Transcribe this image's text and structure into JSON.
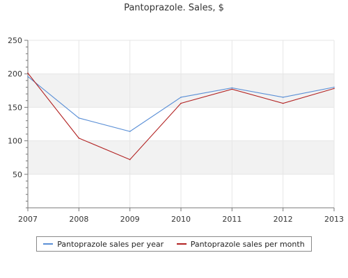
{
  "chart_data": {
    "type": "line",
    "title": "Pantoprazole. Sales, $",
    "xlabel": "",
    "ylabel": "",
    "x": [
      "2007",
      "2008",
      "2009",
      "2010",
      "2011",
      "2012",
      "2013"
    ],
    "ylim": [
      0,
      250
    ],
    "yticks": [
      50,
      100,
      150,
      200,
      250
    ],
    "grid": true,
    "legend_position": "bottom",
    "series": [
      {
        "name": "Pantoprazole sales per year",
        "color": "#5a8fd6",
        "values": [
          196,
          134,
          114,
          165,
          179,
          165,
          180
        ]
      },
      {
        "name": "Pantoprazole sales per month",
        "color": "#b22222",
        "values": [
          201,
          104,
          72,
          156,
          177,
          156,
          178
        ]
      }
    ]
  }
}
